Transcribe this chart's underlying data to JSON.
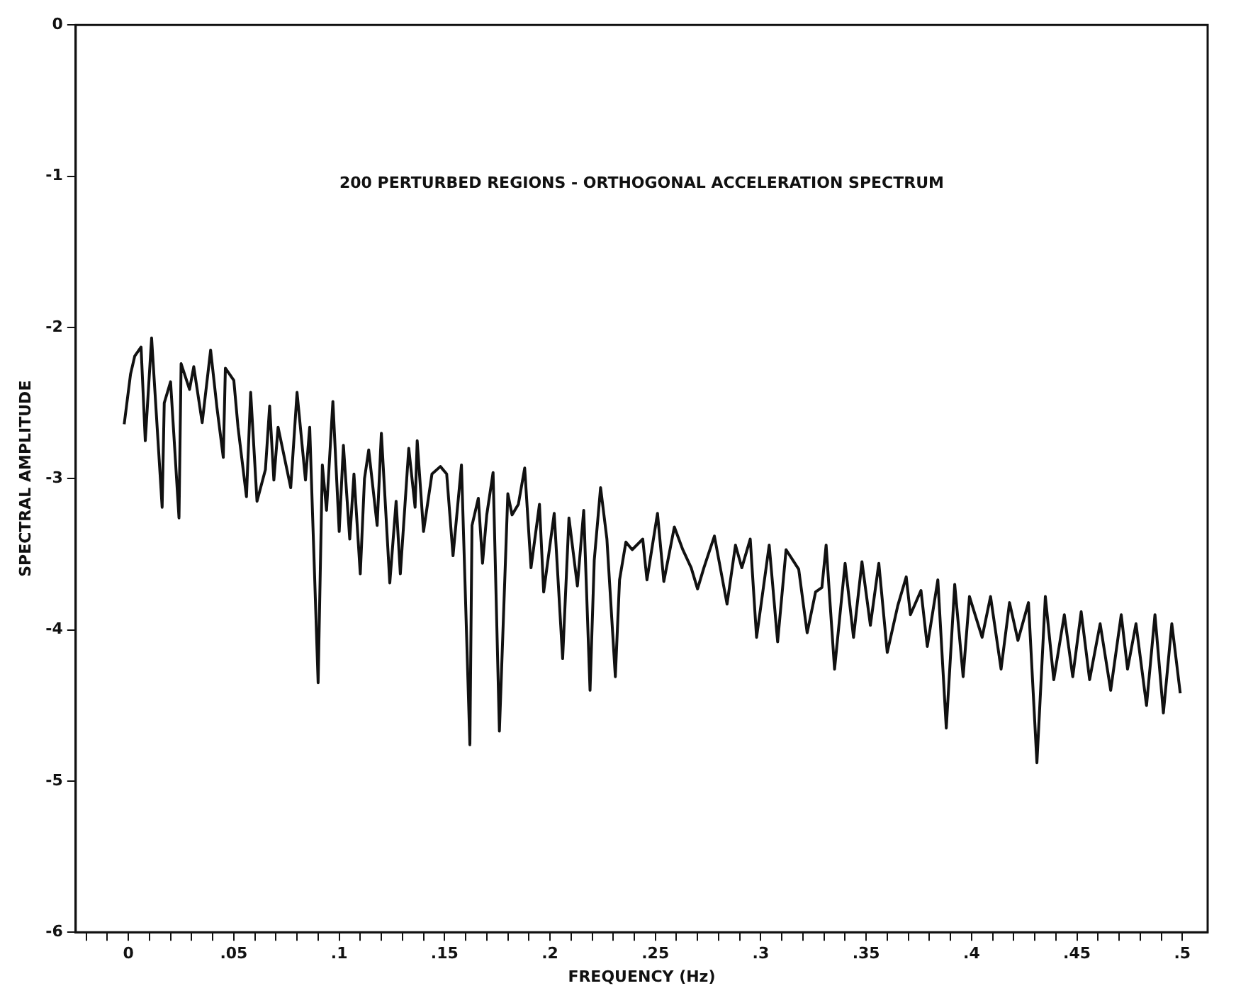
{
  "chart_data": {
    "type": "line",
    "title": "200 PERTURBED REGIONS - ORTHOGONAL ACCELERATION SPECTRUM",
    "xlabel": "FREQUENCY (Hz)",
    "ylabel": "SPECTRAL AMPLITUDE",
    "xlim": [
      -0.025,
      0.512
    ],
    "ylim": [
      -6,
      0
    ],
    "xticks": [
      {
        "value": -0.02,
        "label": null
      },
      {
        "value": -0.01,
        "label": null
      },
      0,
      {
        "value": 0.01,
        "label": null
      },
      {
        "value": 0.02,
        "label": null
      },
      {
        "value": 0.03,
        "label": null
      },
      {
        "value": 0.04,
        "label": null
      },
      {
        "value": 0.05,
        "label": ".05"
      },
      {
        "value": 0.06,
        "label": null
      },
      {
        "value": 0.07,
        "label": null
      },
      {
        "value": 0.08,
        "label": null
      },
      {
        "value": 0.09,
        "label": null
      },
      {
        "value": 0.1,
        "label": ".1"
      },
      {
        "value": 0.11,
        "label": null
      },
      {
        "value": 0.12,
        "label": null
      },
      {
        "value": 0.13,
        "label": null
      },
      {
        "value": 0.14,
        "label": null
      },
      {
        "value": 0.15,
        "label": ".15"
      },
      {
        "value": 0.16,
        "label": null
      },
      {
        "value": 0.17,
        "label": null
      },
      {
        "value": 0.18,
        "label": null
      },
      {
        "value": 0.19,
        "label": null
      },
      {
        "value": 0.2,
        "label": ".2"
      },
      {
        "value": 0.21,
        "label": null
      },
      {
        "value": 0.22,
        "label": null
      },
      {
        "value": 0.23,
        "label": null
      },
      {
        "value": 0.24,
        "label": null
      },
      {
        "value": 0.25,
        "label": ".25"
      },
      {
        "value": 0.26,
        "label": null
      },
      {
        "value": 0.27,
        "label": null
      },
      {
        "value": 0.28,
        "label": null
      },
      {
        "value": 0.29,
        "label": null
      },
      {
        "value": 0.3,
        "label": ".3"
      },
      {
        "value": 0.31,
        "label": null
      },
      {
        "value": 0.32,
        "label": null
      },
      {
        "value": 0.33,
        "label": null
      },
      {
        "value": 0.34,
        "label": null
      },
      {
        "value": 0.35,
        "label": ".35"
      },
      {
        "value": 0.36,
        "label": null
      },
      {
        "value": 0.37,
        "label": null
      },
      {
        "value": 0.38,
        "label": null
      },
      {
        "value": 0.39,
        "label": null
      },
      {
        "value": 0.4,
        "label": ".4"
      },
      {
        "value": 0.41,
        "label": null
      },
      {
        "value": 0.42,
        "label": null
      },
      {
        "value": 0.43,
        "label": null
      },
      {
        "value": 0.44,
        "label": null
      },
      {
        "value": 0.45,
        "label": ".45"
      },
      {
        "value": 0.46,
        "label": null
      },
      {
        "value": 0.47,
        "label": null
      },
      {
        "value": 0.48,
        "label": null
      },
      {
        "value": 0.49,
        "label": null
      },
      {
        "value": 0.5,
        "label": ".5"
      }
    ],
    "yticks": [
      -6,
      -5,
      -4,
      -3,
      -2,
      -1,
      0
    ],
    "grid": false,
    "legend": false,
    "marker": "none",
    "series": [
      {
        "color": "#111111",
        "x": [
          -0.002,
          0.001,
          0.003,
          0.006,
          0.008,
          0.011,
          0.016,
          0.017,
          0.02,
          0.024,
          0.025,
          0.029,
          0.031,
          0.035,
          0.039,
          0.042,
          0.045,
          0.046,
          0.05,
          0.052,
          0.056,
          0.058,
          0.061,
          0.065,
          0.067,
          0.069,
          0.071,
          0.077,
          0.08,
          0.084,
          0.086,
          0.09,
          0.092,
          0.094,
          0.097,
          0.1,
          0.102,
          0.105,
          0.107,
          0.11,
          0.112,
          0.114,
          0.118,
          0.12,
          0.124,
          0.127,
          0.129,
          0.133,
          0.136,
          0.137,
          0.14,
          0.144,
          0.148,
          0.151,
          0.154,
          0.158,
          0.162,
          0.163,
          0.166,
          0.168,
          0.17,
          0.173,
          0.176,
          0.18,
          0.182,
          0.185,
          0.188,
          0.191,
          0.195,
          0.197,
          0.202,
          0.206,
          0.209,
          0.213,
          0.216,
          0.219,
          0.221,
          0.224,
          0.227,
          0.231,
          0.233,
          0.236,
          0.239,
          0.244,
          0.246,
          0.251,
          0.254,
          0.259,
          0.263,
          0.267,
          0.27,
          0.273,
          0.278,
          0.284,
          0.288,
          0.291,
          0.295,
          0.298,
          0.304,
          0.308,
          0.312,
          0.318,
          0.322,
          0.326,
          0.329,
          0.331,
          0.335,
          0.34,
          0.344,
          0.348,
          0.352,
          0.356,
          0.36,
          0.365,
          0.369,
          0.371,
          0.376,
          0.379,
          0.384,
          0.388,
          0.392,
          0.396,
          0.399,
          0.405,
          0.409,
          0.414,
          0.418,
          0.422,
          0.427,
          0.431,
          0.435,
          0.439,
          0.444,
          0.448,
          0.452,
          0.456,
          0.461,
          0.466,
          0.471,
          0.474,
          0.478,
          0.483,
          0.487,
          0.491,
          0.495,
          0.499
        ],
        "values": [
          -2.64,
          -2.31,
          -2.19,
          -2.13,
          -2.75,
          -2.07,
          -3.19,
          -2.5,
          -2.36,
          -3.26,
          -2.24,
          -2.41,
          -2.26,
          -2.63,
          -2.15,
          -2.53,
          -2.86,
          -2.27,
          -2.35,
          -2.66,
          -3.12,
          -2.43,
          -3.15,
          -2.94,
          -2.52,
          -3.01,
          -2.66,
          -3.06,
          -2.43,
          -3.01,
          -2.66,
          -4.35,
          -2.91,
          -3.21,
          -2.49,
          -3.35,
          -2.78,
          -3.4,
          -2.97,
          -3.63,
          -3.0,
          -2.81,
          -3.31,
          -2.7,
          -3.69,
          -3.15,
          -3.63,
          -2.8,
          -3.19,
          -2.75,
          -3.35,
          -2.97,
          -2.92,
          -2.97,
          -3.51,
          -2.91,
          -4.76,
          -3.31,
          -3.13,
          -3.56,
          -3.24,
          -2.96,
          -4.67,
          -3.1,
          -3.24,
          -3.17,
          -2.93,
          -3.59,
          -3.17,
          -3.75,
          -3.23,
          -4.19,
          -3.26,
          -3.71,
          -3.21,
          -4.4,
          -3.54,
          -3.06,
          -3.4,
          -4.31,
          -3.67,
          -3.42,
          -3.47,
          -3.4,
          -3.67,
          -3.23,
          -3.68,
          -3.32,
          -3.47,
          -3.59,
          -3.73,
          -3.59,
          -3.38,
          -3.83,
          -3.44,
          -3.59,
          -3.4,
          -4.05,
          -3.44,
          -4.08,
          -3.47,
          -3.6,
          -4.02,
          -3.75,
          -3.72,
          -3.44,
          -4.26,
          -3.56,
          -4.05,
          -3.55,
          -3.97,
          -3.56,
          -4.15,
          -3.84,
          -3.65,
          -3.9,
          -3.74,
          -4.11,
          -3.67,
          -4.65,
          -3.7,
          -4.31,
          -3.78,
          -4.05,
          -3.78,
          -4.26,
          -3.82,
          -4.07,
          -3.82,
          -4.88,
          -3.78,
          -4.33,
          -3.9,
          -4.31,
          -3.88,
          -4.33,
          -3.96,
          -4.4,
          -3.9,
          -4.26,
          -3.96,
          -4.5,
          -3.9,
          -4.55,
          -3.96,
          -4.42
        ]
      }
    ]
  }
}
